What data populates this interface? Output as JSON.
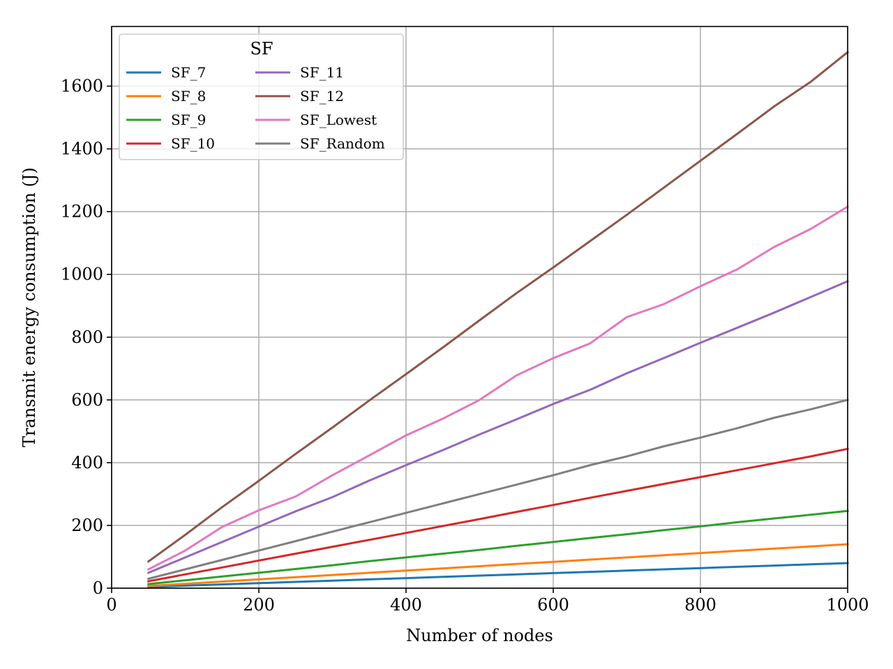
{
  "chart_data": {
    "type": "line",
    "title": "",
    "xlabel": "Number of nodes",
    "ylabel": "Transmit energy consumption (J)",
    "xlim": [
      0,
      1000
    ],
    "ylim": [
      0,
      1790
    ],
    "xticks": [
      0,
      200,
      400,
      600,
      800,
      1000
    ],
    "yticks": [
      0,
      200,
      400,
      600,
      800,
      1000,
      1200,
      1400,
      1600
    ],
    "grid": true,
    "legend": {
      "title": "SF",
      "placement": "top-left",
      "columns": 2
    },
    "x": [
      50,
      100,
      150,
      200,
      250,
      300,
      350,
      400,
      450,
      500,
      550,
      600,
      650,
      700,
      750,
      800,
      850,
      900,
      950,
      1000
    ],
    "series": [
      {
        "name": "SF_7",
        "color": "#1f77b4",
        "values": [
          4,
          8,
          12,
          16,
          20,
          24,
          28,
          32,
          36,
          40,
          44,
          48,
          52,
          56,
          60,
          64,
          68,
          72,
          76,
          80
        ]
      },
      {
        "name": "SF_8",
        "color": "#ff7f0e",
        "values": [
          7,
          14,
          21,
          28,
          35,
          42,
          49,
          56,
          63,
          70,
          77,
          84,
          91,
          98,
          105,
          112,
          119,
          126,
          133,
          140
        ]
      },
      {
        "name": "SF_9",
        "color": "#2ca02c",
        "values": [
          13,
          25,
          37,
          49,
          61,
          73,
          86,
          98,
          110,
          122,
          135,
          147,
          160,
          172,
          185,
          197,
          210,
          222,
          234,
          246
        ]
      },
      {
        "name": "SF_10",
        "color": "#d62728",
        "values": [
          22,
          44,
          66,
          88,
          110,
          132,
          154,
          176,
          198,
          220,
          243,
          265,
          288,
          310,
          332,
          354,
          376,
          398,
          420,
          444
        ]
      },
      {
        "name": "SF_11",
        "color": "#9467bd",
        "values": [
          49,
          98,
          147,
          196,
          245,
          290,
          343,
          392,
          440,
          490,
          538,
          587,
          632,
          685,
          733,
          782,
          830,
          878,
          928,
          978
        ]
      },
      {
        "name": "SF_12",
        "color": "#8c564b",
        "values": [
          85,
          170,
          258,
          342,
          428,
          512,
          598,
          682,
          767,
          854,
          940,
          1022,
          1106,
          1190,
          1276,
          1362,
          1448,
          1535,
          1614,
          1708
        ]
      },
      {
        "name": "SF_Lowest",
        "color": "#e377c2",
        "values": [
          60,
          120,
          195,
          248,
          292,
          360,
          423,
          487,
          540,
          600,
          678,
          733,
          780,
          864,
          905,
          962,
          1016,
          1087,
          1145,
          1216
        ]
      },
      {
        "name": "SF_Random",
        "color": "#7f7f7f",
        "values": [
          30,
          60,
          90,
          120,
          150,
          180,
          210,
          240,
          270,
          300,
          330,
          360,
          392,
          420,
          452,
          480,
          510,
          543,
          570,
          600
        ]
      }
    ]
  }
}
